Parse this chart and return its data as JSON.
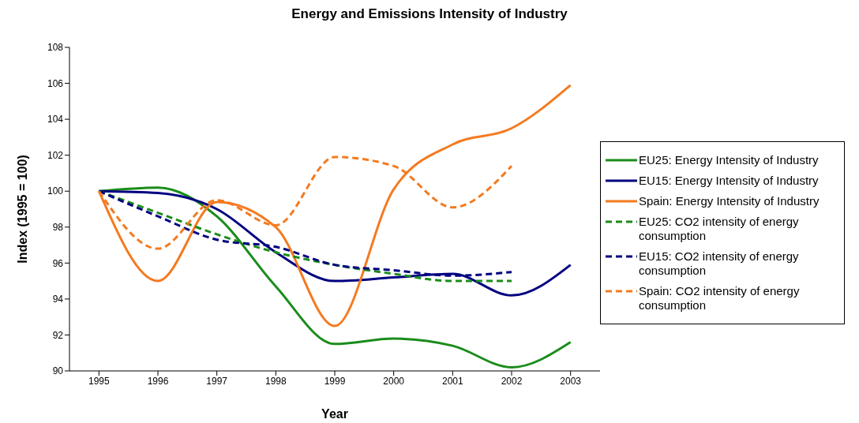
{
  "chart_data": {
    "type": "line",
    "title": "Energy and Emissions Intensity of Industry",
    "xlabel": "Year",
    "ylabel": "Index (1995 = 100)",
    "categories": [
      "1995",
      "1996",
      "1997",
      "1998",
      "1999",
      "2000",
      "2001",
      "2002",
      "2003"
    ],
    "ylim": [
      90,
      108
    ],
    "yticks": [
      90,
      92,
      94,
      96,
      98,
      100,
      102,
      104,
      106,
      108
    ],
    "grid": false,
    "legend": "right",
    "marker": "none",
    "series": [
      {
        "name": "EU25: Energy Intensity of Industry",
        "color": "#1a8c1a",
        "line_style": "solid",
        "values": [
          100,
          100.2,
          98.6,
          94.7,
          91.5,
          91.8,
          91.4,
          90.2,
          91.6
        ]
      },
      {
        "name": "EU15: Energy Intensity of Industry",
        "color": "#000080",
        "line_style": "solid",
        "values": [
          100,
          99.9,
          99.0,
          96.6,
          95.0,
          95.2,
          95.4,
          94.2,
          95.9
        ]
      },
      {
        "name": "Spain: Energy Intensity of Industry",
        "color": "#f47a20",
        "line_style": "solid",
        "values": [
          100,
          95.0,
          99.4,
          98.0,
          92.5,
          100.1,
          102.6,
          103.5,
          105.9
        ]
      },
      {
        "name": "EU25: CO2 intensity of energy consumption",
        "color": "#1a8c1a",
        "line_style": "dashed",
        "values": [
          100,
          98.8,
          97.6,
          96.6,
          95.9,
          95.4,
          95.0,
          95.0,
          null
        ]
      },
      {
        "name": "EU15: CO2 intensity of energy consumption",
        "color": "#000080",
        "line_style": "dashed",
        "values": [
          100,
          98.6,
          97.3,
          96.9,
          95.9,
          95.6,
          95.3,
          95.5,
          null
        ]
      },
      {
        "name": "Spain: CO2 intensity of energy consumption",
        "color": "#f47a20",
        "line_style": "dashed",
        "values": [
          100,
          96.8,
          99.5,
          98.1,
          101.9,
          101.4,
          99.1,
          101.4,
          null
        ]
      }
    ]
  }
}
